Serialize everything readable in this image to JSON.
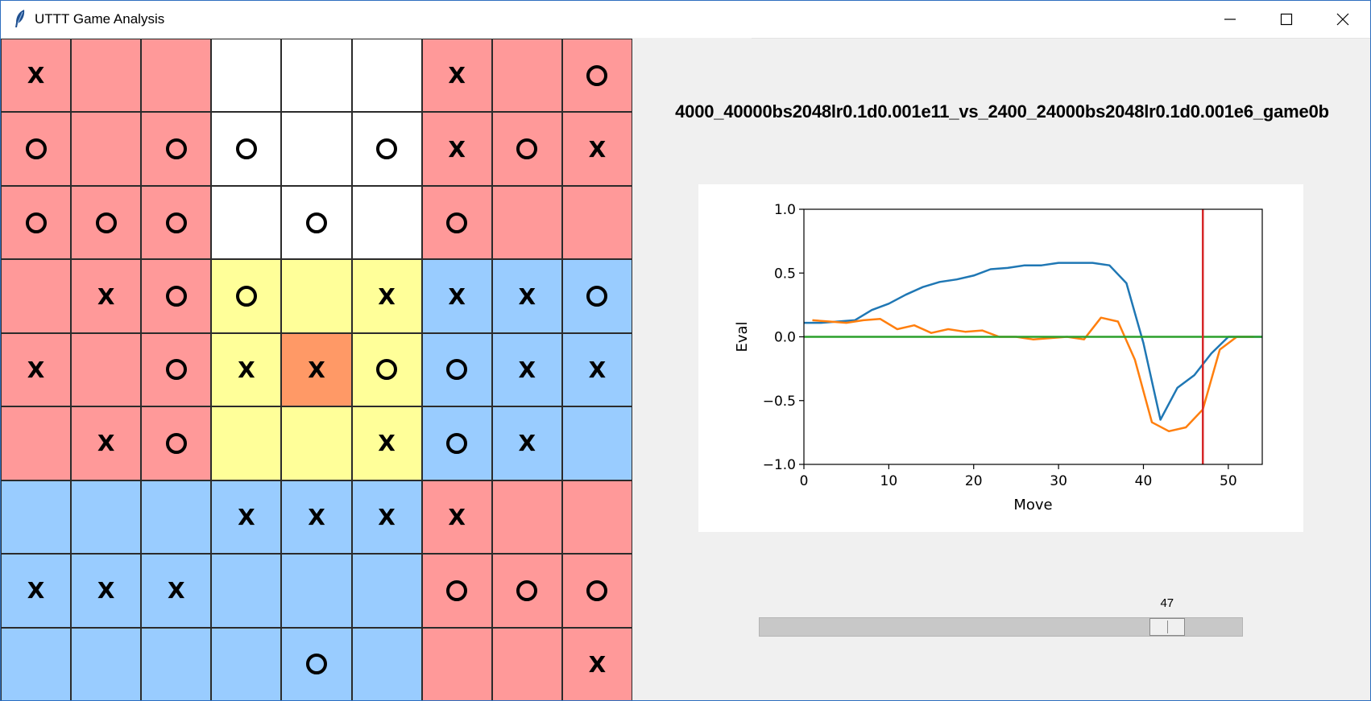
{
  "window": {
    "title": "UTTT Game Analysis",
    "controls": [
      "minimize-icon",
      "maximize-icon",
      "close-icon"
    ]
  },
  "colors": {
    "won_x": "#ff9999",
    "won_o": "#99ccff",
    "active": "#ffff99",
    "last_move": "#ff9966",
    "open": "#ffffff",
    "eval_line_1": "#1f77b4",
    "eval_line_2": "#ff7f0e",
    "zero_line": "#2ca02c",
    "cursor_line": "#d62728"
  },
  "board": {
    "rows": [
      [
        {
          "m": "X",
          "bg": "won_x"
        },
        {
          "m": "",
          "bg": "won_x"
        },
        {
          "m": "",
          "bg": "won_x"
        },
        {
          "m": "",
          "bg": "open"
        },
        {
          "m": "",
          "bg": "open"
        },
        {
          "m": "",
          "bg": "open"
        },
        {
          "m": "X",
          "bg": "won_x"
        },
        {
          "m": "",
          "bg": "won_x"
        },
        {
          "m": "O",
          "bg": "won_x"
        }
      ],
      [
        {
          "m": "O",
          "bg": "won_x"
        },
        {
          "m": "",
          "bg": "won_x"
        },
        {
          "m": "O",
          "bg": "won_x"
        },
        {
          "m": "O",
          "bg": "open"
        },
        {
          "m": "",
          "bg": "open"
        },
        {
          "m": "O",
          "bg": "open"
        },
        {
          "m": "X",
          "bg": "won_x"
        },
        {
          "m": "O",
          "bg": "won_x"
        },
        {
          "m": "X",
          "bg": "won_x"
        }
      ],
      [
        {
          "m": "O",
          "bg": "won_x"
        },
        {
          "m": "O",
          "bg": "won_x"
        },
        {
          "m": "O",
          "bg": "won_x"
        },
        {
          "m": "",
          "bg": "open"
        },
        {
          "m": "O",
          "bg": "open"
        },
        {
          "m": "",
          "bg": "open"
        },
        {
          "m": "O",
          "bg": "won_x"
        },
        {
          "m": "",
          "bg": "won_x"
        },
        {
          "m": "",
          "bg": "won_x"
        }
      ],
      [
        {
          "m": "",
          "bg": "won_x"
        },
        {
          "m": "X",
          "bg": "won_x"
        },
        {
          "m": "O",
          "bg": "won_x"
        },
        {
          "m": "O",
          "bg": "active"
        },
        {
          "m": "",
          "bg": "active"
        },
        {
          "m": "X",
          "bg": "active"
        },
        {
          "m": "X",
          "bg": "won_o"
        },
        {
          "m": "X",
          "bg": "won_o"
        },
        {
          "m": "O",
          "bg": "won_o"
        }
      ],
      [
        {
          "m": "X",
          "bg": "won_x"
        },
        {
          "m": "",
          "bg": "won_x"
        },
        {
          "m": "O",
          "bg": "won_x"
        },
        {
          "m": "X",
          "bg": "active"
        },
        {
          "m": "X",
          "bg": "last_move"
        },
        {
          "m": "O",
          "bg": "active"
        },
        {
          "m": "O",
          "bg": "won_o"
        },
        {
          "m": "X",
          "bg": "won_o"
        },
        {
          "m": "X",
          "bg": "won_o"
        }
      ],
      [
        {
          "m": "",
          "bg": "won_x"
        },
        {
          "m": "X",
          "bg": "won_x"
        },
        {
          "m": "O",
          "bg": "won_x"
        },
        {
          "m": "",
          "bg": "active"
        },
        {
          "m": "",
          "bg": "active"
        },
        {
          "m": "X",
          "bg": "active"
        },
        {
          "m": "O",
          "bg": "won_o"
        },
        {
          "m": "X",
          "bg": "won_o"
        },
        {
          "m": "",
          "bg": "won_o"
        }
      ],
      [
        {
          "m": "",
          "bg": "won_o"
        },
        {
          "m": "",
          "bg": "won_o"
        },
        {
          "m": "",
          "bg": "won_o"
        },
        {
          "m": "X",
          "bg": "won_o"
        },
        {
          "m": "X",
          "bg": "won_o"
        },
        {
          "m": "X",
          "bg": "won_o"
        },
        {
          "m": "X",
          "bg": "won_x"
        },
        {
          "m": "",
          "bg": "won_x"
        },
        {
          "m": "",
          "bg": "won_x"
        }
      ],
      [
        {
          "m": "X",
          "bg": "won_o"
        },
        {
          "m": "X",
          "bg": "won_o"
        },
        {
          "m": "X",
          "bg": "won_o"
        },
        {
          "m": "",
          "bg": "won_o"
        },
        {
          "m": "",
          "bg": "won_o"
        },
        {
          "m": "",
          "bg": "won_o"
        },
        {
          "m": "O",
          "bg": "won_x"
        },
        {
          "m": "O",
          "bg": "won_x"
        },
        {
          "m": "O",
          "bg": "won_x"
        }
      ],
      [
        {
          "m": "",
          "bg": "won_o"
        },
        {
          "m": "",
          "bg": "won_o"
        },
        {
          "m": "",
          "bg": "won_o"
        },
        {
          "m": "",
          "bg": "won_o"
        },
        {
          "m": "O",
          "bg": "won_o"
        },
        {
          "m": "",
          "bg": "won_o"
        },
        {
          "m": "",
          "bg": "won_x"
        },
        {
          "m": "",
          "bg": "won_x"
        },
        {
          "m": "X",
          "bg": "won_x"
        }
      ]
    ]
  },
  "game_name": "4000_40000bs2048lr0.1d0.001e11_vs_2400_24000bs2048lr0.1d0.001e6_game0b",
  "chart_data": {
    "type": "line",
    "title": "",
    "xlabel": "Move",
    "ylabel": "Eval",
    "xlim": [
      0,
      54
    ],
    "ylim": [
      -1.0,
      1.0
    ],
    "xticks": [
      0,
      10,
      20,
      30,
      40,
      50
    ],
    "yticks": [
      -1.0,
      -0.5,
      0.0,
      0.5,
      1.0
    ],
    "ytick_labels": [
      "−1.0",
      "−0.5",
      "0.0",
      "0.5",
      "1.0"
    ],
    "grid": false,
    "series": [
      {
        "color_key": "eval_line_1",
        "x": [
          0,
          2,
          4,
          6,
          8,
          10,
          12,
          14,
          16,
          18,
          20,
          22,
          24,
          26,
          28,
          30,
          32,
          34,
          36,
          38,
          40,
          42,
          44,
          46,
          48,
          50,
          52,
          54
        ],
        "y": [
          0.11,
          0.11,
          0.12,
          0.13,
          0.21,
          0.26,
          0.33,
          0.39,
          0.43,
          0.45,
          0.48,
          0.53,
          0.54,
          0.56,
          0.56,
          0.58,
          0.58,
          0.58,
          0.56,
          0.42,
          -0.05,
          -0.65,
          -0.4,
          -0.3,
          -0.13,
          0.0,
          0.0,
          0.0
        ]
      },
      {
        "color_key": "eval_line_2",
        "x": [
          1,
          3,
          5,
          7,
          9,
          11,
          13,
          15,
          17,
          19,
          21,
          23,
          25,
          27,
          29,
          31,
          33,
          35,
          37,
          39,
          41,
          43,
          45,
          47,
          49,
          51,
          53
        ],
        "y": [
          0.13,
          0.12,
          0.11,
          0.13,
          0.14,
          0.06,
          0.09,
          0.03,
          0.06,
          0.04,
          0.05,
          0.0,
          0.0,
          -0.02,
          -0.01,
          0.0,
          -0.02,
          0.15,
          0.12,
          -0.18,
          -0.67,
          -0.74,
          -0.71,
          -0.57,
          -0.1,
          0.0,
          0.0
        ]
      },
      {
        "color_key": "zero_line",
        "x": [
          0,
          54
        ],
        "y": [
          0.0,
          0.0
        ]
      }
    ],
    "vline": {
      "x": 47,
      "color_key": "cursor_line"
    }
  },
  "slider": {
    "value": 47,
    "min": 0,
    "max": 54
  }
}
